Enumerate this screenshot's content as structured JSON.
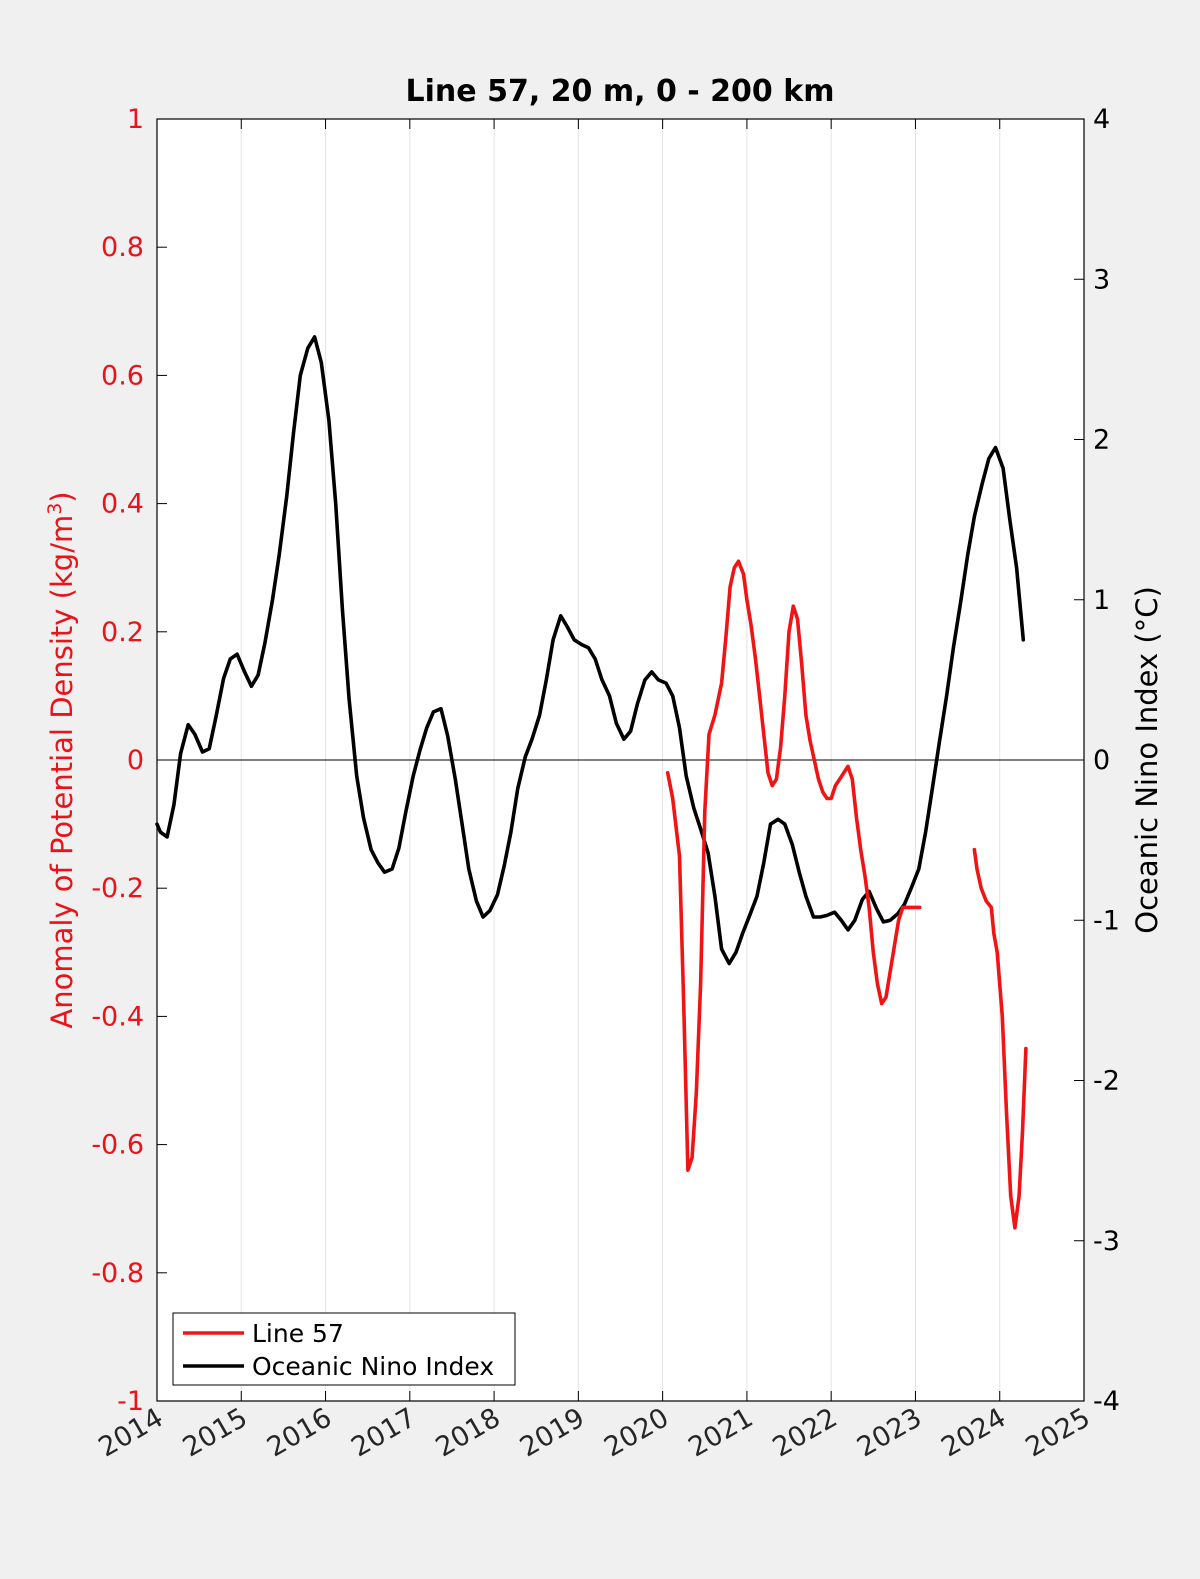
{
  "chart_data": {
    "type": "line",
    "title": "Line 57, 20 m, 0 - 200 km",
    "ylabel_left": "Anomaly of Potential Density (kg/m",
    "ylabel_left_sup": "3",
    "ylabel_left_close": ")",
    "ylabel_right": "Oceanic Nino Index (°C)",
    "xlim": [
      2014,
      2025
    ],
    "ylim_left": [
      -1,
      1
    ],
    "ylim_right": [
      -4,
      4
    ],
    "x_ticks": [
      2014,
      2015,
      2016,
      2017,
      2018,
      2019,
      2020,
      2021,
      2022,
      2023,
      2024,
      2025
    ],
    "x_tick_labels": [
      "2014",
      "2015",
      "2016",
      "2017",
      "2018",
      "2019",
      "2020",
      "2021",
      "2022",
      "2023",
      "2024",
      "2025"
    ],
    "y_left_ticks": [
      -1,
      -0.8,
      -0.6,
      -0.4,
      -0.2,
      0,
      0.2,
      0.4,
      0.6,
      0.8,
      1
    ],
    "y_left_tick_labels": [
      "-1",
      "-0.8",
      "-0.6",
      "-0.4",
      "-0.2",
      "0",
      "0.2",
      "0.4",
      "0.6",
      "0.8",
      "1"
    ],
    "y_right_ticks": [
      -4,
      -3,
      -2,
      -1,
      0,
      1,
      2,
      3,
      4
    ],
    "y_right_tick_labels": [
      "-4",
      "-3",
      "-2",
      "-1",
      "0",
      "1",
      "2",
      "3",
      "4"
    ],
    "grid": "vertical",
    "legend_placement": "bottom-left",
    "colors": {
      "left_axis": "#e8141a",
      "line57": "#f01414",
      "oni": "#000000",
      "background": "#f0f0f0",
      "plot_bg": "#ffffff"
    },
    "series": [
      {
        "name": "Line 57",
        "axis": "left",
        "segments": [
          {
            "x": [
              2020.06,
              2020.12,
              2020.2,
              2020.25,
              2020.3,
              2020.35,
              2020.4,
              2020.45,
              2020.5,
              2020.55,
              2020.62,
              2020.7,
              2020.75,
              2020.8,
              2020.85,
              2020.9,
              2020.96,
              2021.0,
              2021.05,
              2021.1,
              2021.15,
              2021.2,
              2021.25,
              2021.3,
              2021.35,
              2021.4,
              2021.45,
              2021.5,
              2021.55,
              2021.6,
              2021.65,
              2021.7,
              2021.75,
              2021.8,
              2021.85,
              2021.9,
              2021.95,
              2022.0,
              2022.05,
              2022.1,
              2022.15,
              2022.2,
              2022.25,
              2022.3,
              2022.35,
              2022.4,
              2022.45,
              2022.5,
              2022.55,
              2022.6,
              2022.65,
              2022.7,
              2022.75,
              2022.8,
              2022.85,
              2022.9,
              2022.95,
              2023.0,
              2023.05
            ],
            "y": [
              -0.02,
              -0.06,
              -0.15,
              -0.38,
              -0.64,
              -0.62,
              -0.52,
              -0.35,
              -0.08,
              0.04,
              0.07,
              0.12,
              0.19,
              0.27,
              0.3,
              0.31,
              0.29,
              0.25,
              0.21,
              0.16,
              0.1,
              0.04,
              -0.02,
              -0.04,
              -0.03,
              0.02,
              0.1,
              0.2,
              0.24,
              0.22,
              0.15,
              0.07,
              0.03,
              0.0,
              -0.03,
              -0.05,
              -0.06,
              -0.06,
              -0.04,
              -0.03,
              -0.02,
              -0.01,
              -0.03,
              -0.09,
              -0.14,
              -0.18,
              -0.23,
              -0.3,
              -0.35,
              -0.38,
              -0.37,
              -0.33,
              -0.29,
              -0.25,
              -0.23,
              -0.23,
              -0.23,
              -0.23,
              -0.23
            ]
          },
          {
            "x": [
              2023.7,
              2023.73,
              2023.78,
              2023.84,
              2023.9,
              2023.93,
              2023.97,
              2024.03,
              2024.08,
              2024.13,
              2024.18,
              2024.23,
              2024.27,
              2024.31
            ],
            "y": [
              -0.14,
              -0.17,
              -0.2,
              -0.22,
              -0.23,
              -0.27,
              -0.3,
              -0.4,
              -0.55,
              -0.68,
              -0.73,
              -0.68,
              -0.58,
              -0.45
            ]
          }
        ]
      },
      {
        "name": "Oceanic Nino Index",
        "axis": "right",
        "segments": [
          {
            "x": [
              2014.0,
              2014.04,
              2014.12,
              2014.2,
              2014.28,
              2014.37,
              2014.45,
              2014.54,
              2014.62,
              2014.7,
              2014.79,
              2014.87,
              2014.95,
              2015.04,
              2015.12,
              2015.2,
              2015.28,
              2015.37,
              2015.45,
              2015.54,
              2015.62,
              2015.7,
              2015.79,
              2015.87,
              2015.95,
              2016.04,
              2016.12,
              2016.2,
              2016.28,
              2016.37,
              2016.45,
              2016.54,
              2016.62,
              2016.7,
              2016.79,
              2016.87,
              2016.95,
              2017.04,
              2017.12,
              2017.2,
              2017.28,
              2017.37,
              2017.45,
              2017.54,
              2017.62,
              2017.7,
              2017.79,
              2017.87,
              2017.95,
              2018.04,
              2018.12,
              2018.2,
              2018.28,
              2018.37,
              2018.45,
              2018.54,
              2018.62,
              2018.7,
              2018.79,
              2018.87,
              2018.95,
              2019.04,
              2019.12,
              2019.2,
              2019.28,
              2019.37,
              2019.45,
              2019.54,
              2019.62,
              2019.7,
              2019.79,
              2019.87,
              2019.95,
              2020.04,
              2020.12,
              2020.2,
              2020.28,
              2020.37,
              2020.45,
              2020.54,
              2020.62,
              2020.7,
              2020.79,
              2020.87,
              2020.95,
              2021.04,
              2021.12,
              2021.2,
              2021.28,
              2021.37,
              2021.45,
              2021.54,
              2021.62,
              2021.7,
              2021.79,
              2021.87,
              2021.95,
              2022.04,
              2022.12,
              2022.2,
              2022.28,
              2022.37,
              2022.45,
              2022.54,
              2022.62,
              2022.7,
              2022.79,
              2022.87,
              2022.95,
              2023.04,
              2023.12,
              2023.2,
              2023.28,
              2023.37,
              2023.45,
              2023.54,
              2023.62,
              2023.7,
              2023.79,
              2023.87,
              2023.95,
              2024.04,
              2024.12,
              2024.2,
              2024.28
            ],
            "y": [
              -0.4,
              -0.45,
              -0.48,
              -0.28,
              0.04,
              0.22,
              0.16,
              0.05,
              0.07,
              0.27,
              0.51,
              0.63,
              0.66,
              0.55,
              0.46,
              0.53,
              0.73,
              1.0,
              1.28,
              1.65,
              2.04,
              2.4,
              2.57,
              2.64,
              2.48,
              2.12,
              1.6,
              0.94,
              0.38,
              -0.1,
              -0.36,
              -0.56,
              -0.64,
              -0.7,
              -0.68,
              -0.55,
              -0.33,
              -0.1,
              0.06,
              0.2,
              0.3,
              0.32,
              0.15,
              -0.12,
              -0.4,
              -0.68,
              -0.88,
              -0.98,
              -0.94,
              -0.84,
              -0.66,
              -0.45,
              -0.18,
              0.02,
              0.13,
              0.28,
              0.5,
              0.75,
              0.9,
              0.83,
              0.75,
              0.72,
              0.7,
              0.63,
              0.5,
              0.4,
              0.23,
              0.13,
              0.18,
              0.35,
              0.5,
              0.55,
              0.5,
              0.48,
              0.4,
              0.2,
              -0.1,
              -0.3,
              -0.43,
              -0.58,
              -0.85,
              -1.18,
              -1.27,
              -1.2,
              -1.08,
              -0.96,
              -0.85,
              -0.64,
              -0.4,
              -0.37,
              -0.4,
              -0.53,
              -0.7,
              -0.85,
              -0.98,
              -0.98,
              -0.97,
              -0.95,
              -1.0,
              -1.06,
              -1.0,
              -0.87,
              -0.82,
              -0.93,
              -1.01,
              -1.0,
              -0.96,
              -0.9,
              -0.8,
              -0.68,
              -0.45,
              -0.18,
              0.1,
              0.4,
              0.7,
              1.0,
              1.28,
              1.52,
              1.72,
              1.88,
              1.95,
              1.82,
              1.5,
              1.2,
              0.75
            ]
          }
        ]
      }
    ],
    "legend": [
      {
        "label": "Line 57",
        "color": "#f01414"
      },
      {
        "label": "Oceanic Nino Index",
        "color": "#000000"
      }
    ]
  }
}
